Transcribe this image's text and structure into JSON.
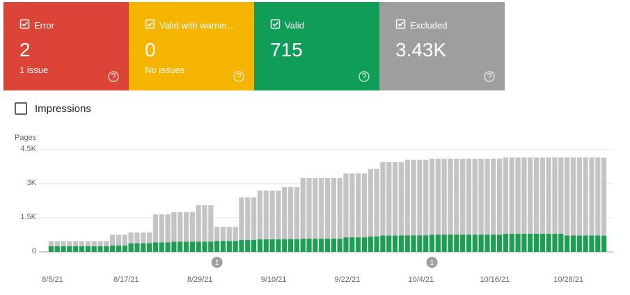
{
  "cards": [
    {
      "title": "Error",
      "value": "2",
      "subtitle": "1 issue",
      "color": "#db4437"
    },
    {
      "title": "Valid with warnin…",
      "value": "0",
      "subtitle": "No issues",
      "color": "#f4b400"
    },
    {
      "title": "Valid",
      "value": "715",
      "color": "#0f9d58"
    },
    {
      "title": "Excluded",
      "value": "3.43K",
      "color": "#9e9e9e"
    }
  ],
  "impressions": "Impressions",
  "chart_data": {
    "type": "bar",
    "stacked": true,
    "ylabel": "Pages",
    "categories": [
      "8/5/21",
      null,
      null,
      null,
      null,
      null,
      null,
      null,
      null,
      null,
      null,
      null,
      "8/17/21",
      null,
      null,
      null,
      null,
      null,
      null,
      null,
      null,
      null,
      null,
      null,
      "8/29/21",
      null,
      null,
      null,
      null,
      null,
      null,
      null,
      null,
      null,
      null,
      null,
      "9/10/21",
      null,
      null,
      null,
      null,
      null,
      null,
      null,
      null,
      null,
      null,
      null,
      "9/22/21",
      null,
      null,
      null,
      null,
      null,
      null,
      null,
      null,
      null,
      null,
      null,
      "10/4/21",
      null,
      null,
      null,
      null,
      null,
      null,
      null,
      null,
      null,
      null,
      null,
      "10/16/21",
      null,
      null,
      null,
      null,
      null,
      null,
      null,
      null,
      null,
      null,
      null,
      "10/28/21",
      null,
      null,
      null,
      null,
      null,
      null
    ],
    "series": [
      {
        "name": "Valid",
        "color": "#1e9e52",
        "values": [
          250,
          250,
          250,
          250,
          250,
          250,
          250,
          250,
          250,
          250,
          280,
          280,
          280,
          380,
          380,
          380,
          380,
          420,
          420,
          420,
          450,
          450,
          450,
          450,
          450,
          450,
          450,
          480,
          480,
          480,
          480,
          520,
          520,
          520,
          550,
          550,
          550,
          550,
          560,
          560,
          560,
          580,
          580,
          580,
          580,
          580,
          580,
          580,
          640,
          640,
          640,
          640,
          680,
          680,
          720,
          720,
          720,
          720,
          730,
          730,
          730,
          730,
          760,
          760,
          760,
          760,
          760,
          760,
          760,
          760,
          760,
          760,
          760,
          760,
          800,
          800,
          800,
          800,
          800,
          800,
          800,
          800,
          800,
          800,
          720,
          720,
          720,
          720,
          720,
          720,
          715
        ]
      },
      {
        "name": "Excluded",
        "color": "#c4c4c4",
        "values": [
          220,
          220,
          220,
          220,
          220,
          220,
          220,
          220,
          220,
          220,
          470,
          470,
          470,
          470,
          470,
          470,
          470,
          1230,
          1230,
          1230,
          1300,
          1300,
          1300,
          1300,
          1600,
          1600,
          1600,
          620,
          620,
          620,
          620,
          1880,
          1880,
          1880,
          2150,
          2150,
          2150,
          2150,
          2290,
          2290,
          2290,
          2670,
          2670,
          2670,
          2670,
          2670,
          2670,
          2670,
          2810,
          2810,
          2810,
          2810,
          2970,
          2970,
          3230,
          3230,
          3230,
          3230,
          3320,
          3320,
          3320,
          3320,
          3340,
          3340,
          3340,
          3340,
          3340,
          3340,
          3340,
          3340,
          3340,
          3340,
          3340,
          3340,
          3350,
          3350,
          3350,
          3350,
          3350,
          3350,
          3350,
          3350,
          3350,
          3350,
          3430,
          3430,
          3430,
          3430,
          3430,
          3430,
          3430
        ]
      }
    ],
    "ylim": [
      0,
      4500
    ],
    "yticks": [
      0,
      {
        "value": 1500,
        "label": "1.5K"
      },
      {
        "value": 3000,
        "label": "3K"
      },
      {
        "value": 4500,
        "label": "4.5K"
      }
    ],
    "grid": true,
    "annotations": [
      {
        "label": "1",
        "at": 27
      },
      {
        "label": "1",
        "at": 62
      }
    ]
  }
}
